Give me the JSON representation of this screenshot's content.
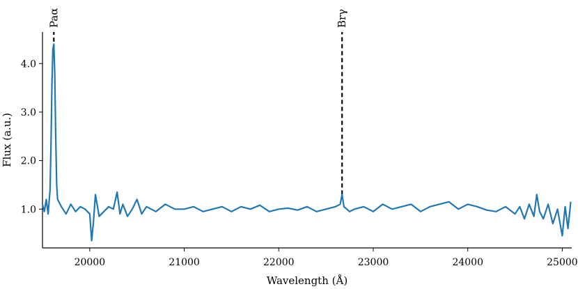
{
  "chart_data": {
    "type": "line",
    "title": "",
    "xlabel": "Wavelength (Å)",
    "ylabel": "Flux (a.u.)",
    "xlim": [
      19500,
      25100
    ],
    "ylim": [
      0.2,
      4.65
    ],
    "xticks": [
      20000,
      21000,
      22000,
      23000,
      24000,
      25000
    ],
    "xtick_labels": [
      "20000",
      "21000",
      "22000",
      "23000",
      "24000",
      "25000"
    ],
    "yticks": [
      1.0,
      2.0,
      3.0,
      4.0
    ],
    "ytick_labels": [
      "1.0",
      "2.0",
      "3.0",
      "4.0"
    ],
    "grid": false,
    "series_color": "#1f77b4",
    "series": [
      {
        "x": [
          19500,
          19520,
          19540,
          19560,
          19580,
          19590,
          19600,
          19610,
          19620,
          19630,
          19640,
          19650,
          19660,
          19700,
          19750,
          19800,
          19850,
          19900,
          19950,
          20000,
          20020,
          20040,
          20060,
          20100,
          20150,
          20200,
          20250,
          20290,
          20320,
          20350,
          20400,
          20450,
          20500,
          20550,
          20600,
          20700,
          20800,
          20900,
          21000,
          21100,
          21200,
          21300,
          21400,
          21500,
          21600,
          21700,
          21800,
          21900,
          22000,
          22100,
          22200,
          22300,
          22400,
          22500,
          22600,
          22650,
          22670,
          22690,
          22750,
          22800,
          22900,
          23000,
          23100,
          23200,
          23300,
          23400,
          23500,
          23600,
          23700,
          23800,
          23900,
          24000,
          24100,
          24200,
          24300,
          24400,
          24500,
          24550,
          24600,
          24650,
          24700,
          24730,
          24760,
          24800,
          24850,
          24900,
          24950,
          25000,
          25030,
          25060,
          25090
        ],
        "y": [
          1.1,
          0.95,
          1.2,
          0.9,
          1.4,
          2.3,
          3.6,
          4.3,
          4.4,
          3.8,
          2.5,
          1.5,
          1.2,
          1.05,
          0.9,
          1.1,
          0.95,
          1.05,
          1.0,
          0.9,
          0.35,
          0.75,
          1.3,
          0.85,
          0.95,
          1.05,
          1.0,
          1.35,
          0.9,
          1.1,
          0.85,
          1.0,
          1.2,
          0.9,
          1.05,
          0.95,
          1.1,
          1.0,
          1.0,
          1.05,
          0.95,
          1.0,
          1.05,
          0.95,
          1.05,
          1.0,
          1.08,
          0.95,
          1.0,
          1.02,
          0.98,
          1.05,
          0.95,
          1.0,
          1.05,
          1.1,
          1.3,
          1.05,
          0.95,
          1.0,
          1.05,
          0.95,
          1.1,
          1.0,
          1.05,
          1.1,
          0.95,
          1.05,
          1.1,
          1.15,
          1.0,
          1.1,
          1.05,
          0.98,
          0.95,
          1.05,
          0.9,
          1.05,
          0.8,
          1.1,
          0.85,
          1.3,
          0.95,
          0.8,
          1.1,
          0.7,
          1.0,
          0.45,
          1.05,
          0.6,
          1.15
        ]
      }
    ],
    "annotations": [
      {
        "text": "Paα",
        "x": 19620,
        "y_from": 4.45,
        "y_to": 4.65
      },
      {
        "text": "Brγ",
        "x": 22670,
        "y_from": 1.3,
        "y_to": 4.65
      }
    ]
  }
}
